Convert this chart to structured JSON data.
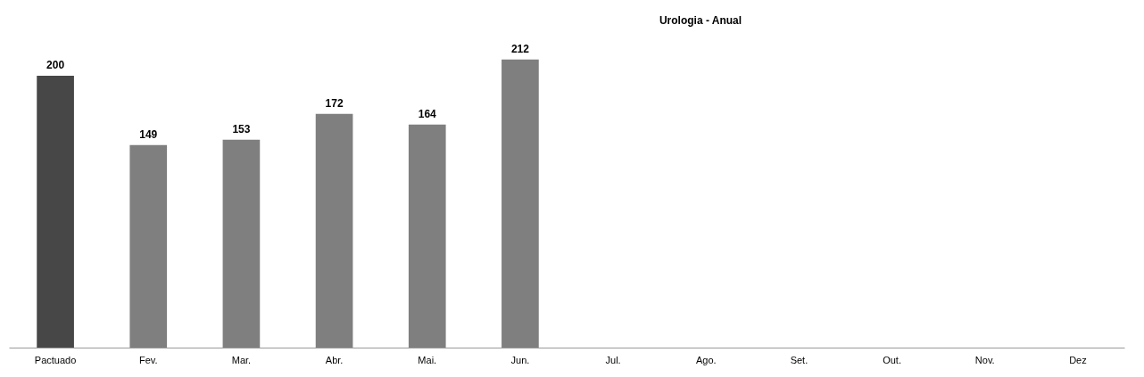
{
  "chart_data": {
    "type": "bar",
    "title": "Urologia - Anual",
    "categories": [
      "Pactuado",
      "Fev.",
      "Mar.",
      "Abr.",
      "Mai.",
      "Jun.",
      "Jul.",
      "Ago.",
      "Set.",
      "Out.",
      "Nov.",
      "Dez"
    ],
    "values": [
      200,
      149,
      153,
      172,
      164,
      212,
      null,
      null,
      null,
      null,
      null,
      null
    ],
    "colors": [
      "#474747",
      "#7f7f7f",
      "#7f7f7f",
      "#7f7f7f",
      "#7f7f7f",
      "#7f7f7f",
      null,
      null,
      null,
      null,
      null,
      null
    ],
    "data_labels": true,
    "grid": false
  }
}
